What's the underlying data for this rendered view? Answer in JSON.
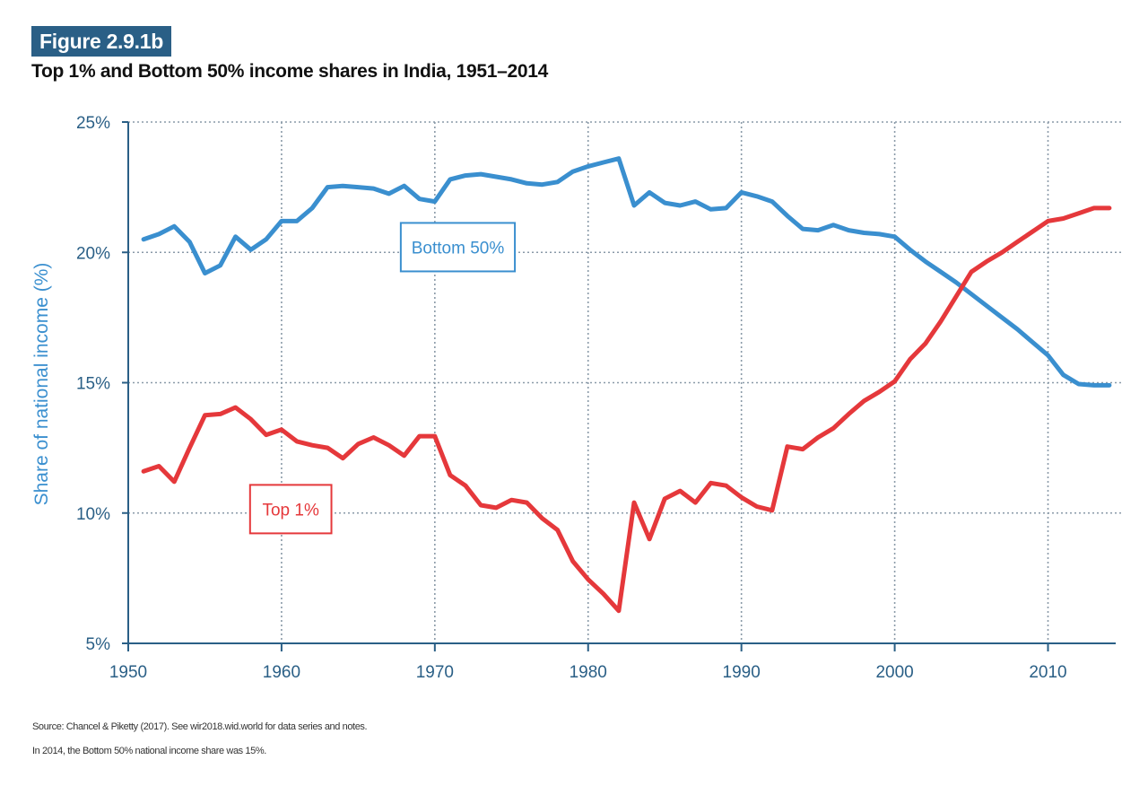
{
  "figure": {
    "label": "Figure 2.9.1b",
    "title": "Top 1% and Bottom 50% income shares in India, 1951–2014",
    "badge_color": "#2a5f86"
  },
  "footnotes": {
    "source": "Source: Chancel & Piketty (2017). See wir2018.wid.world for data series and notes.",
    "note": "In 2014, the Bottom 50% national income share was 15%."
  },
  "chart_data": {
    "type": "line",
    "title": "Top 1% and Bottom 50% income shares in India, 1951–2014",
    "xlabel": "",
    "ylabel": "Share of national income (%)",
    "xlim": [
      1950,
      2014
    ],
    "ylim": [
      5,
      25
    ],
    "xticks": [
      1950,
      1960,
      1970,
      1980,
      1990,
      2000,
      2010
    ],
    "xtick_labels": [
      "1950",
      "1960",
      "1970",
      "1980",
      "1990",
      "2000",
      "2010"
    ],
    "yticks": [
      5,
      10,
      15,
      20,
      25
    ],
    "ytick_labels": [
      "5%",
      "10%",
      "15%",
      "20%",
      "25%"
    ],
    "grid": true,
    "legend": "inline-labels",
    "x": [
      1951,
      1952,
      1953,
      1954,
      1955,
      1956,
      1957,
      1958,
      1959,
      1960,
      1961,
      1962,
      1963,
      1964,
      1965,
      1966,
      1967,
      1968,
      1969,
      1970,
      1971,
      1972,
      1973,
      1974,
      1975,
      1976,
      1977,
      1978,
      1979,
      1980,
      1981,
      1982,
      1983,
      1984,
      1985,
      1986,
      1987,
      1988,
      1989,
      1990,
      1991,
      1992,
      1993,
      1994,
      1995,
      1996,
      1997,
      1998,
      1999,
      2000,
      2001,
      2002,
      2003,
      2004,
      2005,
      2006,
      2007,
      2008,
      2009,
      2010,
      2011,
      2012,
      2013,
      2014
    ],
    "series": [
      {
        "name": "Bottom 50%",
        "label": "Bottom 50%",
        "color": "#3a8fcf",
        "values": [
          20.5,
          20.7,
          21.0,
          20.4,
          19.2,
          19.5,
          20.6,
          20.1,
          20.5,
          21.2,
          21.2,
          21.7,
          22.5,
          22.55,
          22.5,
          22.45,
          22.25,
          22.55,
          22.05,
          21.95,
          22.8,
          22.95,
          23.0,
          22.9,
          22.8,
          22.65,
          22.6,
          22.7,
          23.1,
          23.3,
          23.45,
          23.6,
          21.8,
          22.3,
          21.9,
          21.8,
          21.95,
          21.65,
          21.7,
          22.3,
          22.15,
          21.95,
          21.4,
          20.9,
          20.85,
          21.05,
          20.85,
          20.75,
          20.7,
          20.6,
          20.1,
          19.65,
          19.25,
          18.85,
          18.4,
          17.95,
          17.5,
          17.05,
          16.55,
          16.05,
          15.3,
          14.95,
          14.9,
          14.9
        ]
      },
      {
        "name": "Top 1%",
        "label": "Top 1%",
        "color": "#e5383b",
        "values": [
          11.6,
          11.8,
          11.2,
          12.5,
          13.75,
          13.8,
          14.05,
          13.6,
          13.0,
          13.2,
          12.75,
          12.6,
          12.5,
          12.1,
          12.65,
          12.9,
          12.6,
          12.2,
          12.95,
          12.95,
          11.45,
          11.05,
          10.3,
          10.2,
          10.5,
          10.4,
          9.8,
          9.35,
          8.15,
          7.45,
          6.9,
          6.25,
          10.4,
          9.0,
          10.55,
          10.85,
          10.4,
          11.15,
          11.05,
          10.6,
          10.25,
          10.1,
          12.55,
          12.45,
          12.9,
          13.25,
          13.8,
          14.3,
          14.65,
          15.05,
          15.9,
          16.5,
          17.35,
          18.3,
          19.25,
          19.65,
          20.0,
          20.4,
          20.8,
          21.2,
          21.3,
          21.5,
          21.7,
          21.7
        ]
      }
    ],
    "annotations": [
      {
        "text": "Bottom 50%",
        "series": "Bottom 50%",
        "anchor_x": 1971.5,
        "anchor_y": 20.2
      },
      {
        "text": "Top 1%",
        "series": "Top 1%",
        "anchor_x": 1960.6,
        "anchor_y": 10.15
      }
    ],
    "axis_color": "#2a5f86",
    "grid_color": "#8a9aa8"
  }
}
